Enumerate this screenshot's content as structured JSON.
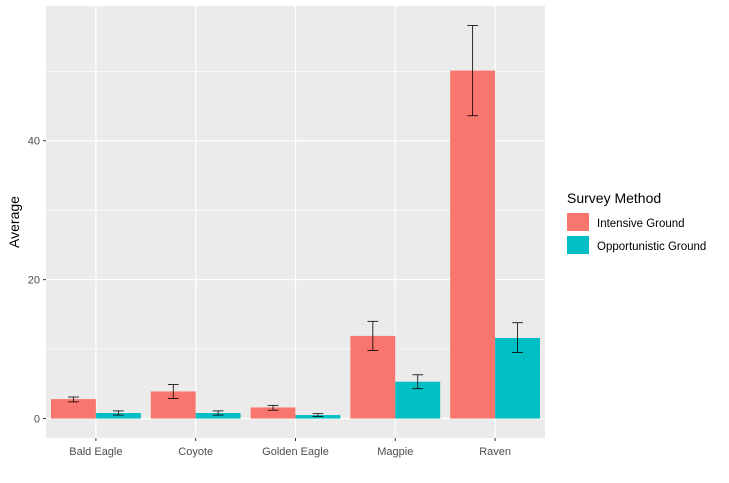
{
  "chart_data": {
    "type": "bar",
    "categories": [
      "Bald Eagle",
      "Coyote",
      "Golden Eagle",
      "Magpie",
      "Raven"
    ],
    "series": [
      {
        "name": "Intensive Ground",
        "color": "#F8766D",
        "values": [
          2.8,
          3.9,
          1.6,
          11.9,
          50.1
        ],
        "error_low": [
          2.4,
          2.9,
          1.2,
          9.8,
          43.6
        ],
        "error_high": [
          3.1,
          4.9,
          1.9,
          14.0,
          56.6
        ]
      },
      {
        "name": "Opportunistic Ground",
        "color": "#00BFC4",
        "values": [
          0.8,
          0.8,
          0.5,
          5.3,
          11.6
        ],
        "error_low": [
          0.5,
          0.5,
          0.3,
          4.3,
          9.5
        ],
        "error_high": [
          1.1,
          1.1,
          0.7,
          6.3,
          13.8
        ]
      }
    ],
    "y_ticks": [
      0,
      20,
      40
    ],
    "ylim": [
      -2.8,
      59.4
    ],
    "xlabel": "",
    "ylabel": "Average",
    "legend_title": "Survey Method",
    "legend_position": "right",
    "grid": true,
    "panel_background": "#EBEBEB"
  }
}
